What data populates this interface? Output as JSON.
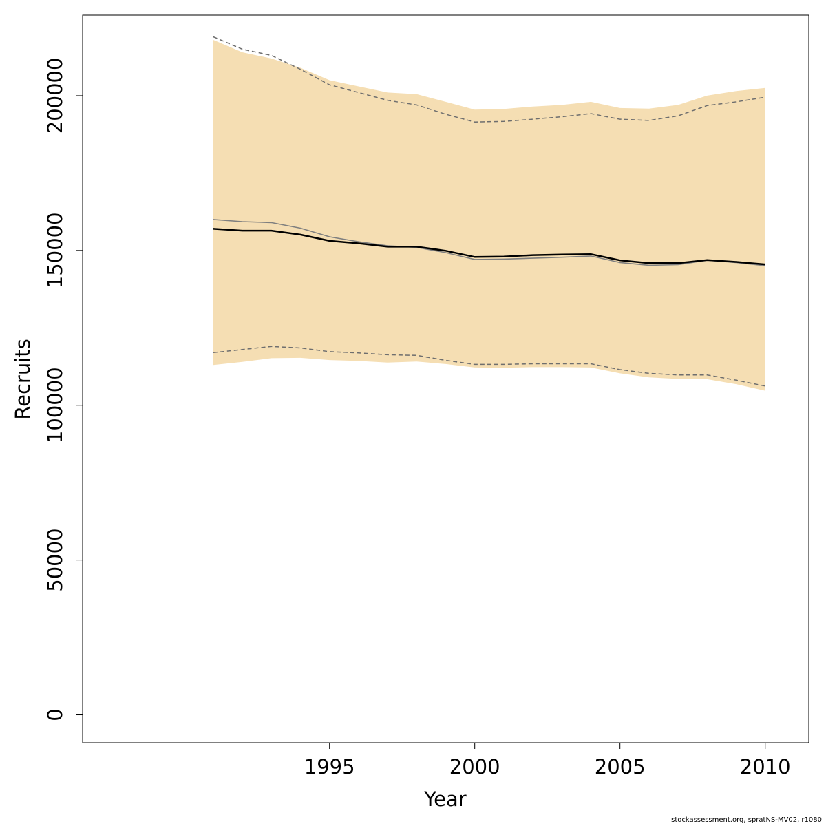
{
  "chart_data": {
    "type": "line",
    "xlabel": "Year",
    "ylabel": "Recruits",
    "xlim": [
      1986.5,
      2011.5
    ],
    "ylim": [
      -9000,
      226000
    ],
    "x_ticks": [
      1995,
      2000,
      2005,
      2010
    ],
    "y_ticks": [
      0,
      50000,
      100000,
      150000,
      200000
    ],
    "band_color": "#F5DEB3",
    "x": [
      1991,
      1992,
      1993,
      1994,
      1995,
      1996,
      1997,
      1998,
      1999,
      2000,
      2001,
      2002,
      2003,
      2004,
      2005,
      2006,
      2007,
      2008,
      2009,
      2010
    ],
    "band_upper": [
      218000,
      214000,
      212000,
      209000,
      205000,
      203000,
      201000,
      200500,
      198000,
      195500,
      195700,
      196500,
      197000,
      198000,
      196000,
      195800,
      197000,
      200000,
      201500,
      202500
    ],
    "band_lower": [
      113000,
      114000,
      115200,
      115300,
      114600,
      114300,
      113800,
      114100,
      113300,
      112200,
      112100,
      112300,
      112300,
      112200,
      110300,
      109000,
      108500,
      108400,
      106800,
      104700
    ],
    "series": [
      {
        "role": "estimate",
        "color": "#000000",
        "values": [
          157000,
          156400,
          156400,
          155100,
          153100,
          152300,
          151200,
          151200,
          149900,
          147900,
          148000,
          148500,
          148700,
          148800,
          146800,
          145900,
          145900,
          146900,
          146300,
          145500
        ]
      },
      {
        "role": "alternate-estimate",
        "color": "#7f7f7f",
        "values": [
          160000,
          159300,
          159000,
          157200,
          154400,
          152800,
          151500,
          151000,
          149300,
          147100,
          147200,
          147500,
          147800,
          148200,
          146100,
          145200,
          145400,
          146800,
          146100,
          145100
        ]
      },
      {
        "role": "upper-bound",
        "color": "#6e6e6e",
        "dashed": true,
        "values": [
          219000,
          215000,
          213000,
          208500,
          203500,
          201000,
          198500,
          197000,
          194000,
          191500,
          191700,
          192400,
          193200,
          194200,
          192400,
          192000,
          193500,
          196800,
          198000,
          199500
        ]
      },
      {
        "role": "lower-bound",
        "color": "#6e6e6e",
        "dashed": true,
        "values": [
          117000,
          118000,
          119000,
          118500,
          117300,
          116900,
          116300,
          116100,
          114500,
          113200,
          113200,
          113400,
          113400,
          113400,
          111500,
          110300,
          109800,
          109800,
          108100,
          106200
        ]
      }
    ]
  },
  "footer_text": "stockassessment.org, spratNS-MV02, r1080"
}
